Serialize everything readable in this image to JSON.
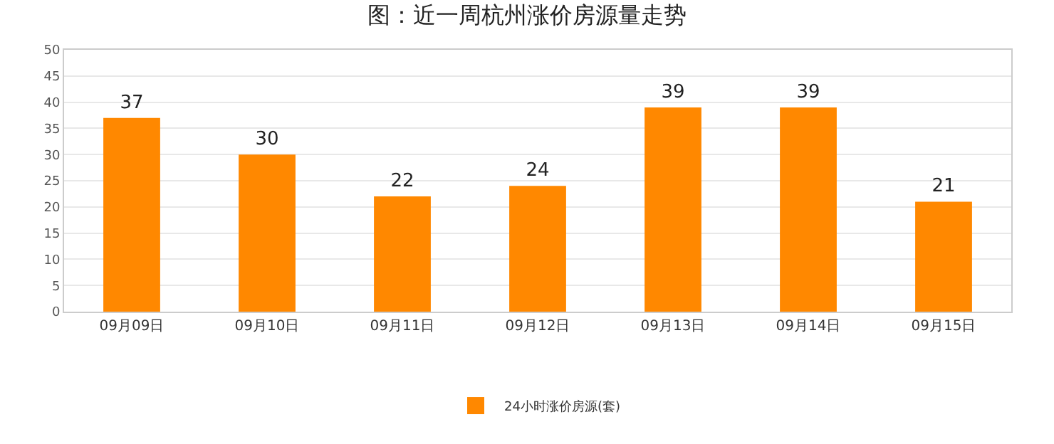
{
  "chart_data": {
    "type": "bar",
    "title": "图：近一周杭州涨价房源量走势",
    "categories": [
      "09月09日",
      "09月10日",
      "09月11日",
      "09月12日",
      "09月13日",
      "09月14日",
      "09月15日"
    ],
    "series": [
      {
        "name": "24小时涨价房源(套)",
        "color": "#ff8800",
        "values": [
          37,
          30,
          22,
          24,
          39,
          39,
          21
        ]
      }
    ],
    "ylim": [
      0,
      50
    ],
    "yticks": [
      0,
      5,
      10,
      15,
      20,
      25,
      30,
      35,
      40,
      45,
      50
    ],
    "grid": "y",
    "legend": "bottom",
    "data_labels": true
  }
}
